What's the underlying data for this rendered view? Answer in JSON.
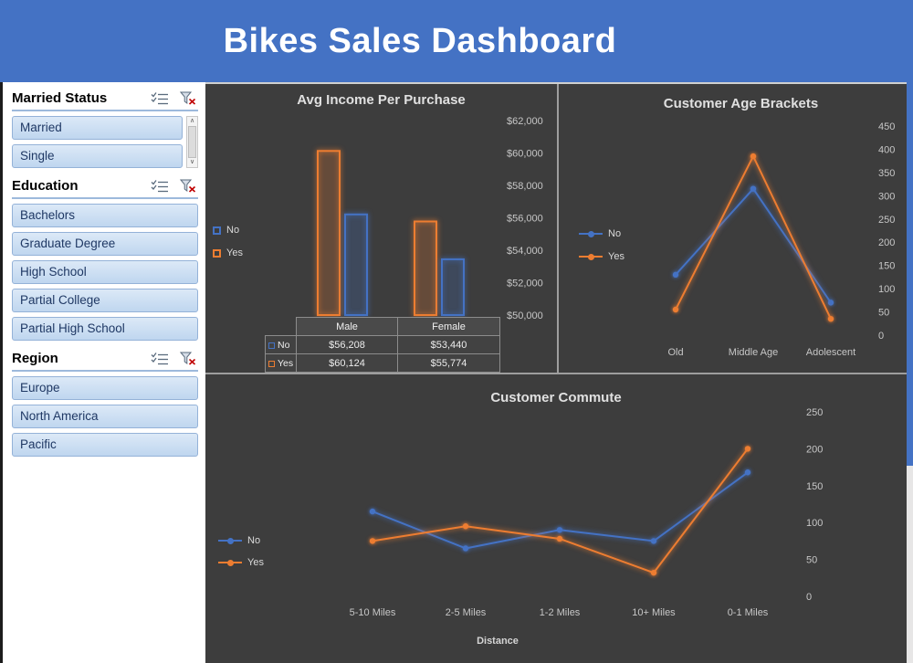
{
  "header": {
    "title": "Bikes Sales Dashboard"
  },
  "sidebar": {
    "slicers": [
      {
        "title": "Married Status",
        "items": [
          "Married",
          "Single"
        ],
        "scrollbar": true
      },
      {
        "title": "Education",
        "items": [
          "Bachelors",
          "Graduate Degree",
          "High School",
          "Partial College",
          "Partial High School"
        ],
        "scrollbar": false
      },
      {
        "title": "Region",
        "items": [
          "Europe",
          "North America",
          "Pacific"
        ],
        "scrollbar": false
      }
    ],
    "icons": {
      "multi_select": "multi-select-icon",
      "clear_filter": "clear-filter-icon"
    }
  },
  "colors": {
    "header_blue": "#4472C4",
    "series_no": "#4472C4",
    "series_yes": "#ED7D31",
    "panel_bg": "#3D3D3D",
    "slicer_item_bg": "#C5D9F1",
    "slicer_item_border": "#94B2D8"
  },
  "chart_data": [
    {
      "type": "bar",
      "title": "Avg Income Per Purchase",
      "categories": [
        "Male",
        "Female"
      ],
      "series": [
        {
          "name": "No",
          "color": "#4472C4",
          "values": [
            56208,
            53440
          ]
        },
        {
          "name": "Yes",
          "color": "#ED7D31",
          "values": [
            60124,
            55774
          ]
        }
      ],
      "ylim": [
        50000,
        62000
      ],
      "yticks": [
        "$62,000",
        "$60,000",
        "$58,000",
        "$56,000",
        "$54,000",
        "$52,000",
        "$50,000"
      ],
      "axis_position": "right",
      "legend_position": "left",
      "grid": false,
      "data_table": {
        "col_headers": [
          "Male",
          "Female"
        ],
        "rows": [
          {
            "name": "No",
            "color": "#4472C4",
            "cells": [
              "$56,208",
              "$53,440"
            ]
          },
          {
            "name": "Yes",
            "color": "#ED7D31",
            "cells": [
              "$60,124",
              "$55,774"
            ]
          }
        ]
      }
    },
    {
      "type": "line",
      "title": "Customer Age Brackets",
      "categories": [
        "Old",
        "Middle Age",
        "Adolescent"
      ],
      "series": [
        {
          "name": "No",
          "color": "#4472C4",
          "values": [
            130,
            315,
            70
          ]
        },
        {
          "name": "Yes",
          "color": "#ED7D31",
          "values": [
            55,
            385,
            35
          ]
        }
      ],
      "ylim": [
        0,
        450
      ],
      "yticks": [
        450,
        400,
        350,
        300,
        250,
        200,
        150,
        100,
        50,
        0
      ],
      "axis_position": "right",
      "legend_position": "left",
      "grid": false
    },
    {
      "type": "line",
      "title": "Customer Commute",
      "categories": [
        "5-10 Miles",
        "2-5 Miles",
        "1-2 Miles",
        "10+ Miles",
        "0-1 Miles"
      ],
      "xlabel": "Distance",
      "series": [
        {
          "name": "No",
          "color": "#4472C4",
          "values": [
            115,
            65,
            90,
            75,
            168
          ]
        },
        {
          "name": "Yes",
          "color": "#ED7D31",
          "values": [
            75,
            95,
            78,
            32,
            200
          ]
        }
      ],
      "ylim": [
        0,
        250
      ],
      "yticks": [
        250,
        200,
        150,
        100,
        50,
        0
      ],
      "axis_position": "right",
      "legend_position": "left",
      "grid": false
    }
  ]
}
